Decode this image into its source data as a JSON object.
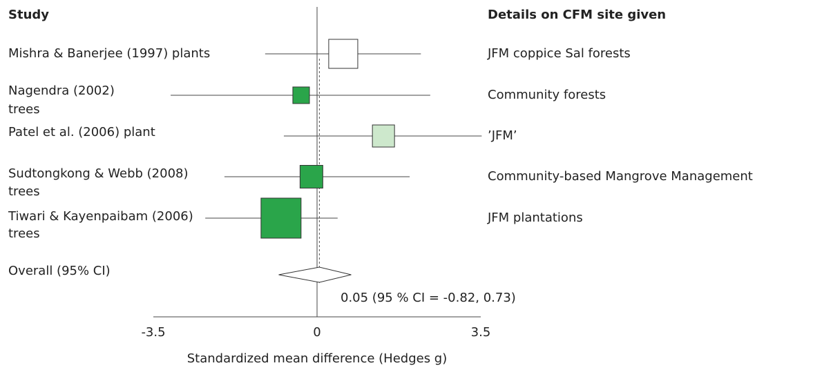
{
  "chart_data": {
    "type": "forest",
    "study_header": "Study",
    "details_header": "Details on CFM site given",
    "studies": [
      [
        "Mishra & Banerjee (1997) plants"
      ],
      [
        "Nagendra (2002)",
        "trees"
      ],
      [
        "Patel et al. (2006) plant"
      ],
      [
        "Sudtongkong & Webb (2008)",
        "trees"
      ],
      [
        "Tiwari & Kayenpaibam (2006)",
        "trees"
      ]
    ],
    "details": [
      "JFM coppice Sal forests",
      "Community forests",
      "’JFM’",
      "Community-based Mangrove Management",
      "JFM plantations"
    ],
    "estimates": [
      0.56,
      -0.34,
      1.42,
      -0.12,
      -0.77
    ],
    "lower": [
      -1.11,
      -3.13,
      -0.71,
      -1.98,
      -2.39
    ],
    "upper": [
      2.22,
      2.42,
      3.52,
      1.98,
      0.44
    ],
    "weights": [
      22.6,
      7.4,
      13.1,
      13.9,
      43.0
    ],
    "colors": [
      "#ffffff",
      "#2aa54a",
      "#cde8cc",
      "#2aa54a",
      "#2aa54a"
    ],
    "overall": {
      "name": "Overall (95% CI)",
      "estimate": 0.05,
      "lower": -0.82,
      "upper": 0.73,
      "label": "0.05 (95 % CI = -0.82, 0.73)"
    },
    "xlabel": "Standardized mean difference (Hedges g)",
    "xlim": [
      -3.5,
      3.5
    ],
    "xticks": [
      -3.5,
      0,
      3.5
    ]
  }
}
